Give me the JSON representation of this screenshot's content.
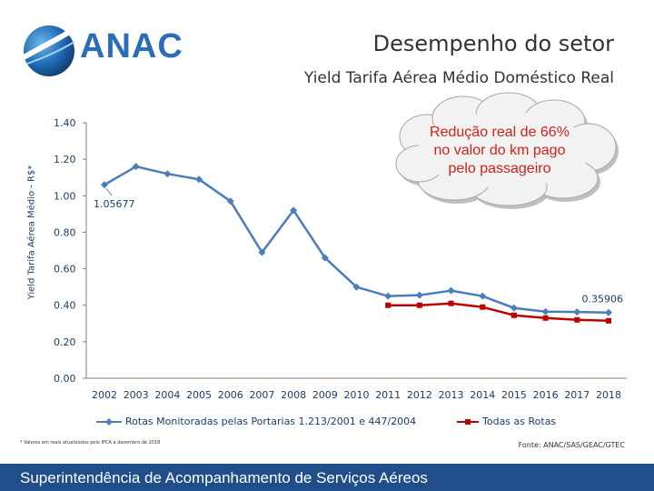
{
  "header": {
    "logo_text": "ANAC",
    "slide_title": "Desempenho do setor",
    "chart_title": "Yield Tarifa Aérea Médio Doméstico Real"
  },
  "callout": {
    "line1": "Redução real de 66%",
    "line2": "no valor do km pago",
    "line3": "pelo passageiro"
  },
  "footnote": "* Valores em reais atualizados pelo IPCA a dezembro de 2018",
  "source": "Fonte: ANAC/SAS/GEAC/GTEC",
  "footer": "Superintendência de Acompanhamento de Serviços Aéreos",
  "colors": {
    "series1": "#4a7ebb",
    "series2": "#c00000",
    "brand": "#2a6fb5",
    "footer_bg": "#1f4e8a",
    "callout_text": "#d0231b"
  },
  "chart_data": {
    "type": "line",
    "title": "Yield Tarifa Aérea Médio Doméstico Real",
    "xlabel": "",
    "ylabel": "Yield Tarifa Aérea Médio - R$*",
    "ylim": [
      0,
      1.4
    ],
    "yticks": [
      "0.00",
      "0.20",
      "0.40",
      "0.60",
      "0.80",
      "1.00",
      "1.20",
      "1.40"
    ],
    "categories": [
      "2002",
      "2003",
      "2004",
      "2005",
      "2006",
      "2007",
      "2008",
      "2009",
      "2010",
      "2011",
      "2012",
      "2013",
      "2014",
      "2015",
      "2016",
      "2017",
      "2018"
    ],
    "series": [
      {
        "name": "Rotas Monitoradas pelas Portarias 1.213/2001 e 447/2004",
        "values": [
          1.06,
          1.16,
          1.12,
          1.09,
          0.97,
          0.69,
          0.92,
          0.66,
          0.5,
          0.45,
          0.455,
          0.48,
          0.45,
          0.385,
          0.365,
          0.363,
          0.36
        ]
      },
      {
        "name": "Todas as Rotas",
        "values": [
          null,
          null,
          null,
          null,
          null,
          null,
          null,
          null,
          null,
          0.4,
          0.4,
          0.41,
          0.39,
          0.345,
          0.33,
          0.32,
          0.315
        ]
      }
    ],
    "data_labels": [
      {
        "text": "1.05677",
        "series": 0,
        "index": 0
      },
      {
        "text": "0.35906",
        "series": 0,
        "index": 16
      }
    ],
    "legend_position": "bottom",
    "grid": false
  }
}
